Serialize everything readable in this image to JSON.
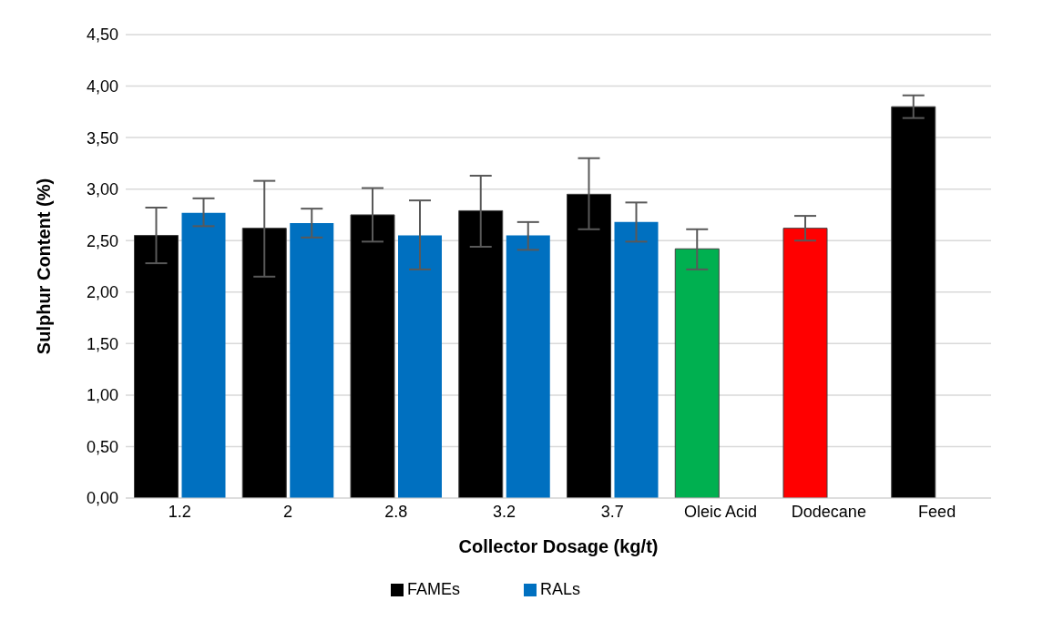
{
  "chart_data": {
    "type": "bar",
    "xlabel": "Collector Dosage (kg/t)",
    "ylabel": "Sulphur Content (%)",
    "categories": [
      "1.2",
      "2",
      "2.8",
      "3.2",
      "3.7",
      "Oleic Acid",
      "Dodecane",
      "Feed"
    ],
    "series": [
      {
        "name": "FAMEs",
        "color": "#000000",
        "values": [
          2.55,
          2.62,
          2.75,
          2.79,
          2.95,
          2.42,
          2.62,
          3.8
        ],
        "colors": [
          "#000000",
          "#000000",
          "#000000",
          "#000000",
          "#000000",
          "#00b050",
          "#ff0000",
          "#000000"
        ],
        "errors": [
          [
            2.28,
            2.82
          ],
          [
            2.15,
            3.08
          ],
          [
            2.49,
            3.01
          ],
          [
            2.44,
            3.13
          ],
          [
            2.61,
            3.3
          ],
          [
            2.22,
            2.61
          ],
          [
            2.5,
            2.74
          ],
          [
            3.69,
            3.91
          ]
        ]
      },
      {
        "name": "RALs",
        "color": "#0070c0",
        "values": [
          2.77,
          2.67,
          2.55,
          2.55,
          2.68,
          null,
          null,
          null
        ],
        "errors": [
          [
            2.64,
            2.91
          ],
          [
            2.53,
            2.81
          ],
          [
            2.22,
            2.89
          ],
          [
            2.41,
            2.68
          ],
          [
            2.49,
            2.87
          ],
          null,
          null,
          null
        ]
      }
    ],
    "ylim": [
      0,
      4.5
    ],
    "yticks": [
      {
        "value": 0,
        "label": "0,00"
      },
      {
        "value": 0.5,
        "label": "0,50"
      },
      {
        "value": 1,
        "label": "1,00"
      },
      {
        "value": 1.5,
        "label": "1,50"
      },
      {
        "value": 2,
        "label": "2,00"
      },
      {
        "value": 2.5,
        "label": "2,50"
      },
      {
        "value": 3,
        "label": "3,00"
      },
      {
        "value": 3.5,
        "label": "3,50"
      },
      {
        "value": 4,
        "label": "4,00"
      },
      {
        "value": 4.5,
        "label": "4,50"
      }
    ],
    "grid": "y",
    "legend": "bottom"
  }
}
